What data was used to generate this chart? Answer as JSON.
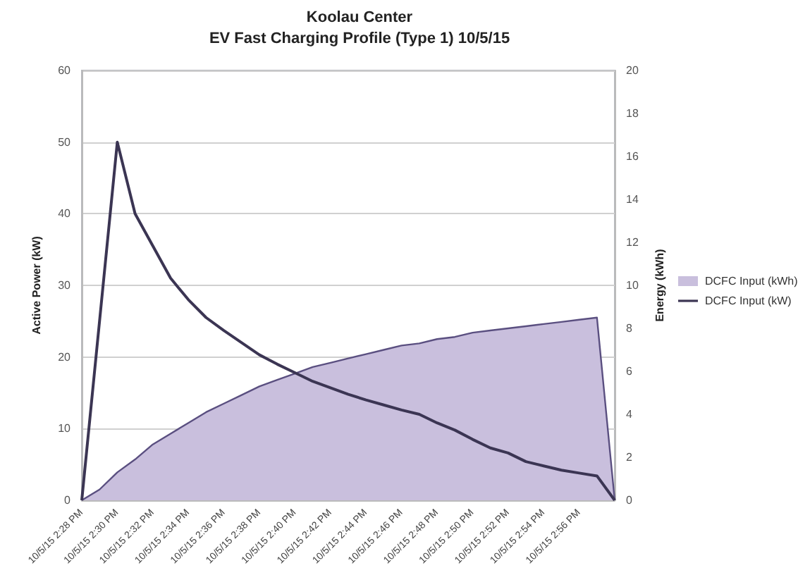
{
  "chart_data": {
    "type": "line",
    "title": "Koolau Center",
    "subtitle": "EV Fast Charging Profile (Type 1) 10/5/15",
    "categories": [
      "10/5/15 2:28 PM",
      null,
      "10/5/15 2:30 PM",
      null,
      "10/5/15 2:32 PM",
      null,
      "10/5/15 2:34 PM",
      null,
      "10/5/15 2:36 PM",
      null,
      "10/5/15 2:38 PM",
      null,
      "10/5/15 2:40 PM",
      null,
      "10/5/15 2:42 PM",
      null,
      "10/5/15 2:44 PM",
      null,
      "10/5/15 2:46 PM",
      null,
      "10/5/15 2:48 PM",
      null,
      "10/5/15 2:50 PM",
      null,
      "10/5/15 2:52 PM",
      null,
      "10/5/15 2:54 PM",
      null,
      "10/5/15 2:56 PM",
      null,
      null
    ],
    "series": [
      {
        "name": "DCFC Input (kWh)",
        "type": "area",
        "axis": "y2",
        "color": "#c9bfdd",
        "values": [
          0,
          0.5,
          1.3,
          1.9,
          2.6,
          3.1,
          3.6,
          4.1,
          4.5,
          4.9,
          5.3,
          5.6,
          5.9,
          6.2,
          6.4,
          6.6,
          6.8,
          7.0,
          7.2,
          7.3,
          7.5,
          7.6,
          7.8,
          7.9,
          8.0,
          8.1,
          8.2,
          8.3,
          8.4,
          8.5,
          0
        ]
      },
      {
        "name": "DCFC Input (kW)",
        "color": "#3b3553",
        "values": [
          0,
          25,
          50,
          40,
          35.5,
          31,
          28,
          25.5,
          23.7,
          22,
          20.3,
          19,
          17.8,
          16.6,
          15.7,
          14.8,
          14,
          13.3,
          12.6,
          12,
          10.8,
          9.8,
          8.5,
          7.3,
          6.6,
          5.4,
          4.8,
          4.2,
          3.8,
          3.4,
          0
        ]
      }
    ],
    "ylabel": "Active Power (kW)",
    "y2label": "Energy (kWh)",
    "ylim": [
      0,
      60
    ],
    "yticks": [
      0,
      10,
      20,
      30,
      40,
      50,
      60
    ],
    "y2lim": [
      0,
      20
    ],
    "y2ticks": [
      0,
      2,
      4,
      6,
      8,
      10,
      12,
      14,
      16,
      18,
      20
    ],
    "grid": "y",
    "legend": "right",
    "marker": "none",
    "line_style": "solid"
  }
}
